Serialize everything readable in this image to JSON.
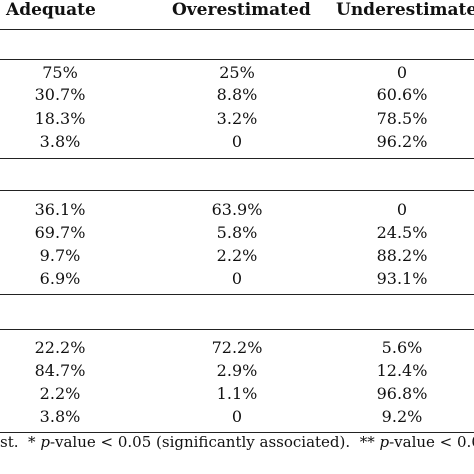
{
  "table": {
    "headers": [
      "Adequate",
      "Overestimated",
      "Underestimated"
    ],
    "groups": [
      {
        "rows": [
          [
            "75%",
            "25%",
            "0"
          ],
          [
            "30.7%",
            "8.8%",
            "60.6%"
          ],
          [
            "18.3%",
            "3.2%",
            "78.5%"
          ],
          [
            "3.8%",
            "0",
            "96.2%"
          ]
        ]
      },
      {
        "rows": [
          [
            "36.1%",
            "63.9%",
            "0"
          ],
          [
            "69.7%",
            "5.8%",
            "24.5%"
          ],
          [
            "9.7%",
            "2.2%",
            "88.2%"
          ],
          [
            "6.9%",
            "0",
            "93.1%"
          ]
        ]
      },
      {
        "rows": [
          [
            "22.2%",
            "72.2%",
            "5.6%"
          ],
          [
            "84.7%",
            "2.9%",
            "12.4%"
          ],
          [
            "2.2%",
            "1.1%",
            "96.8%"
          ],
          [
            "3.8%",
            "0",
            "9.2%"
          ]
        ]
      }
    ]
  },
  "footnote": {
    "lead": "st.",
    "star1": "*",
    "p1": "p",
    "text1": "-value < 0.05 (significantly associated).",
    "star2": "**",
    "p2": "p",
    "text2": "-value < 0.0"
  }
}
